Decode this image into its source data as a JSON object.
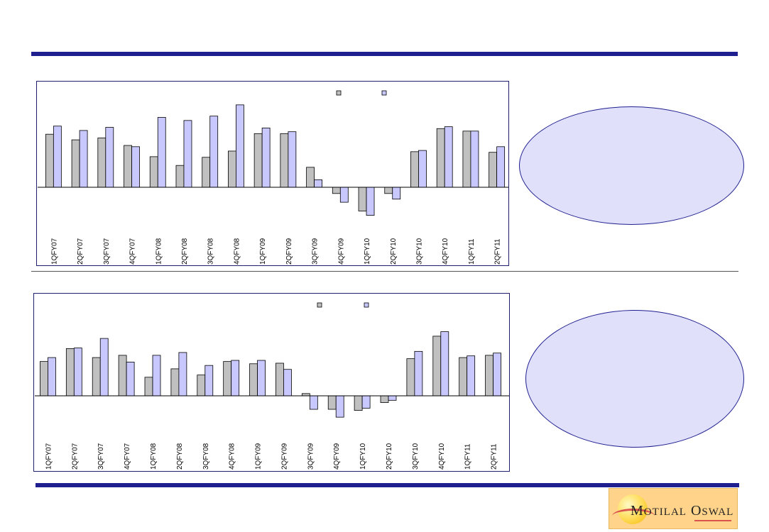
{
  "colors": {
    "rule": "#1f1f8f",
    "series_a": "#c0c0c0",
    "series_b": "#c8c8ff",
    "ellipse_fill": "#e0e0fb",
    "logo_bg": "#ffd48a"
  },
  "logo": {
    "brand_first": "M",
    "brand_first_rest": "OTILAL",
    "brand_second": "O",
    "brand_second_rest": "SWAL"
  },
  "chart_data": [
    {
      "type": "bar",
      "categories": [
        "1QFY07",
        "2QFY07",
        "3QFY07",
        "4QFY07",
        "1QFY08",
        "2QFY08",
        "3QFY08",
        "4QFY08",
        "1QFY09",
        "2QFY09",
        "3QFY09",
        "4QFY09",
        "1QFY10",
        "2QFY10",
        "3QFY10",
        "4QFY10",
        "1QFY11",
        "2QFY11"
      ],
      "series": [
        {
          "values": [
            85,
            76,
            79,
            67,
            49,
            35,
            48,
            58,
            86,
            86,
            32,
            -10,
            -38,
            -10,
            57,
            94,
            90,
            56
          ]
        },
        {
          "values": [
            98,
            91,
            96,
            65,
            112,
            107,
            114,
            132,
            95,
            89,
            12,
            -24,
            -45,
            -19,
            59,
            97,
            90,
            65
          ]
        }
      ],
      "ylim": [
        -60,
        150
      ],
      "grid": false,
      "legend": "top-right"
    },
    {
      "type": "bar",
      "categories": [
        "1QFY07",
        "2QFY07",
        "3QFY07",
        "4QFY07",
        "1QFY08",
        "2QFY08",
        "3QFY08",
        "4QFY08",
        "1QFY09",
        "2QFY09",
        "3QFY09",
        "4QFY09",
        "1QFY10",
        "2QFY10",
        "3QFY10",
        "4QFY10",
        "1QFY11",
        "2QFY11"
      ],
      "series": [
        {
          "values": [
            61,
            84,
            68,
            72,
            33,
            48,
            37,
            61,
            57,
            58,
            4,
            -24,
            -26,
            -12,
            66,
            106,
            68,
            72
          ]
        },
        {
          "values": [
            68,
            85,
            102,
            60,
            72,
            77,
            54,
            63,
            63,
            47,
            -24,
            -38,
            -22,
            -8,
            79,
            114,
            71,
            76
          ]
        }
      ],
      "ylim": [
        -50,
        145
      ],
      "grid": false,
      "legend": "top-right"
    }
  ]
}
